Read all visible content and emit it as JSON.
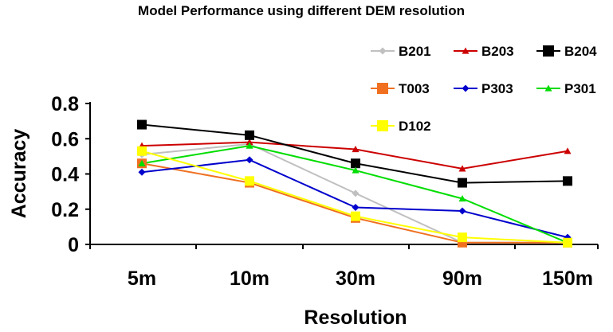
{
  "chart_data": {
    "type": "line",
    "title": "Model Performance using different DEM resolution",
    "xlabel": "Resolution",
    "ylabel": "Accuracy",
    "categories": [
      "5m",
      "10m",
      "30m",
      "90m",
      "150m"
    ],
    "ylim": [
      0,
      0.8
    ],
    "yticks": [
      "0",
      "0.2",
      "0.4",
      "0.6",
      "0.8"
    ],
    "grid": false,
    "legend_position": "top-right",
    "series": [
      {
        "name": "B201",
        "color": "#c0c0c0",
        "marker": "diamond",
        "values": [
          0.51,
          0.57,
          0.29,
          0.01,
          0.01
        ]
      },
      {
        "name": "B203",
        "color": "#cc0000",
        "marker": "triangle",
        "values": [
          0.56,
          0.58,
          0.54,
          0.43,
          0.53
        ]
      },
      {
        "name": "B204",
        "color": "#000000",
        "marker": "square",
        "values": [
          0.68,
          0.62,
          0.46,
          0.35,
          0.36
        ]
      },
      {
        "name": "T003",
        "color": "#f07020",
        "marker": "square",
        "values": [
          0.46,
          0.35,
          0.15,
          0.01,
          0.01
        ]
      },
      {
        "name": "P303",
        "color": "#0000cc",
        "marker": "diamond",
        "values": [
          0.41,
          0.48,
          0.21,
          0.19,
          0.04
        ]
      },
      {
        "name": "P301",
        "color": "#00dd00",
        "marker": "triangle",
        "values": [
          0.46,
          0.56,
          0.42,
          0.26,
          0.01
        ]
      },
      {
        "name": "D102",
        "color": "#ffff00",
        "marker": "square",
        "values": [
          0.53,
          0.36,
          0.16,
          0.04,
          0.01
        ]
      }
    ]
  }
}
